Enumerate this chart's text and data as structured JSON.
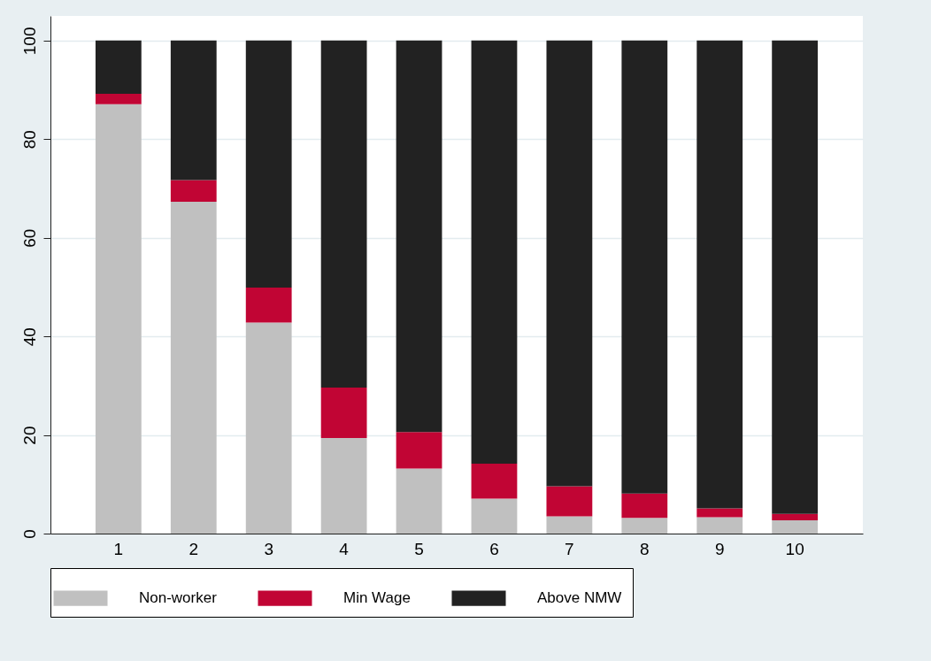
{
  "chart_data": {
    "type": "bar",
    "stacked": true,
    "categories": [
      "1",
      "2",
      "3",
      "4",
      "5",
      "6",
      "7",
      "8",
      "9",
      "10"
    ],
    "series": [
      {
        "name": "Non-worker",
        "color": "#c0c0c0",
        "values": [
          87.1,
          67.3,
          42.8,
          19.4,
          13.2,
          7.1,
          3.5,
          3.2,
          3.3,
          2.7
        ]
      },
      {
        "name": "Min Wage",
        "color": "#c10534",
        "values": [
          2.1,
          4.4,
          7.1,
          10.2,
          7.4,
          7.1,
          6.1,
          4.9,
          1.8,
          1.3
        ]
      },
      {
        "name": "Above NMW",
        "color": "#222222",
        "values": [
          10.8,
          28.3,
          50.1,
          70.4,
          79.4,
          85.8,
          90.4,
          91.9,
          94.9,
          96.0
        ]
      }
    ],
    "ylim": [
      0,
      105
    ],
    "yticks": [
      0,
      20,
      40,
      60,
      80,
      100
    ],
    "grid": "y",
    "legend": "bottom"
  }
}
